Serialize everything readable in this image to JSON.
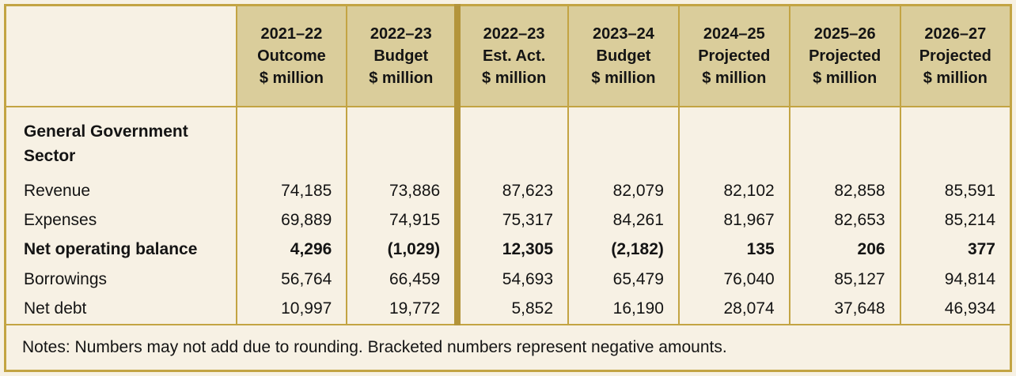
{
  "table": {
    "columns": [
      {
        "year": "2021–22",
        "type": "Outcome",
        "unit": "$ million"
      },
      {
        "year": "2022–23",
        "type": "Budget",
        "unit": "$ million"
      },
      {
        "year": "2022–23",
        "type": "Est. Act.",
        "unit": "$ million"
      },
      {
        "year": "2023–24",
        "type": "Budget",
        "unit": "$ million"
      },
      {
        "year": "2024–25",
        "type": "Projected",
        "unit": "$ million"
      },
      {
        "year": "2025–26",
        "type": "Projected",
        "unit": "$ million"
      },
      {
        "year": "2026–27",
        "type": "Projected",
        "unit": "$ million"
      }
    ],
    "section_label": "General Government Sector",
    "rows": [
      {
        "label": "Revenue",
        "bold": false,
        "values": [
          "74,185",
          "73,886",
          "87,623",
          "82,079",
          "82,102",
          "82,858",
          "85,591"
        ]
      },
      {
        "label": "Expenses",
        "bold": false,
        "values": [
          "69,889",
          "74,915",
          "75,317",
          "84,261",
          "81,967",
          "82,653",
          "85,214"
        ]
      },
      {
        "label": "Net operating balance",
        "bold": true,
        "values": [
          "4,296",
          "(1,029)",
          "12,305",
          "(2,182)",
          "135",
          "206",
          "377"
        ]
      },
      {
        "label": "Borrowings",
        "bold": false,
        "values": [
          "56,764",
          "66,459",
          "54,693",
          "65,479",
          "76,040",
          "85,127",
          "94,814"
        ]
      },
      {
        "label": "Net debt",
        "bold": false,
        "values": [
          "10,997",
          "19,772",
          "5,852",
          "16,190",
          "28,074",
          "37,648",
          "46,934"
        ]
      }
    ],
    "notes": "Notes: Numbers may not add due to rounding. Bracketed numbers represent negative amounts."
  },
  "colors": {
    "page_background": "#f7f1e4",
    "header_background": "#dacd9b",
    "border_gold": "#c3a443",
    "thick_divider": "#b3943a",
    "text": "#141414"
  }
}
